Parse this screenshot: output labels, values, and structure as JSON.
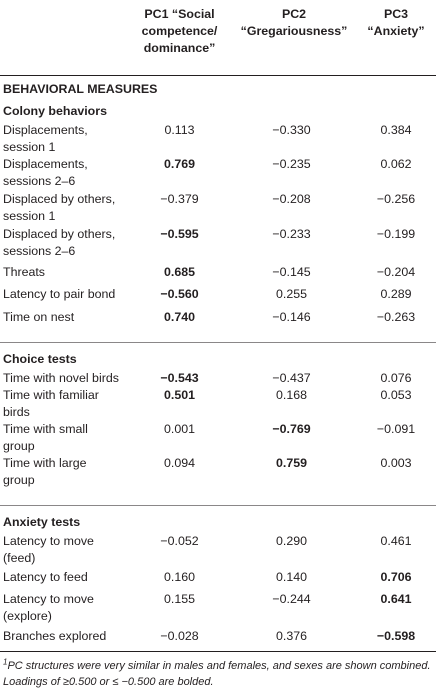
{
  "header": {
    "pc1": [
      "PC1 “Social",
      "competence/",
      "dominance”"
    ],
    "pc2": [
      "PC2",
      "“Gregariousness”"
    ],
    "pc3": [
      "PC3",
      "“Anxiety”"
    ]
  },
  "section_title": "BEHAVIORAL MEASURES",
  "groups": [
    {
      "title": "Colony behaviors",
      "rows": [
        {
          "label": [
            "Displacements,",
            "session 1"
          ],
          "values": [
            "0.113",
            "−0.330",
            "0.384"
          ],
          "bold": [
            false,
            false,
            false
          ]
        },
        {
          "label": [
            "Displacements,",
            "sessions 2–6"
          ],
          "values": [
            "0.769",
            "−0.235",
            "0.062"
          ],
          "bold": [
            true,
            false,
            false
          ]
        },
        {
          "label": [
            "Displaced by others,",
            "session 1"
          ],
          "values": [
            "−0.379",
            "−0.208",
            "−0.256"
          ],
          "bold": [
            false,
            false,
            false
          ]
        },
        {
          "label": [
            "Displaced by others,",
            "sessions 2–6"
          ],
          "values": [
            "−0.595",
            "−0.233",
            "−0.199"
          ],
          "bold": [
            true,
            false,
            false
          ]
        },
        {
          "label": [
            "Threats"
          ],
          "values": [
            "0.685",
            "−0.145",
            "−0.204"
          ],
          "bold": [
            true,
            false,
            false
          ]
        },
        {
          "label": [
            "Latency to pair bond"
          ],
          "values": [
            "−0.560",
            "0.255",
            "0.289"
          ],
          "bold": [
            true,
            false,
            false
          ]
        },
        {
          "label": [
            "Time on nest"
          ],
          "values": [
            "0.740",
            "−0.146",
            "−0.263"
          ],
          "bold": [
            true,
            false,
            false
          ]
        }
      ]
    },
    {
      "title": "Choice tests",
      "rows": [
        {
          "label": [
            "Time with novel birds"
          ],
          "values": [
            "−0.543",
            "−0.437",
            "0.076"
          ],
          "bold": [
            true,
            false,
            false
          ]
        },
        {
          "label": [
            "Time with familiar",
            "birds"
          ],
          "values": [
            "0.501",
            "0.168",
            "0.053"
          ],
          "bold": [
            true,
            false,
            false
          ]
        },
        {
          "label": [
            "Time with small",
            "group"
          ],
          "values": [
            "0.001",
            "−0.769",
            "−0.091"
          ],
          "bold": [
            false,
            true,
            false
          ]
        },
        {
          "label": [
            "Time with large",
            "group"
          ],
          "values": [
            "0.094",
            "0.759",
            "0.003"
          ],
          "bold": [
            false,
            true,
            false
          ]
        }
      ]
    },
    {
      "title": "Anxiety tests",
      "rows": [
        {
          "label": [
            "Latency to move",
            "(feed)"
          ],
          "values": [
            "−0.052",
            "0.290",
            "0.461"
          ],
          "bold": [
            false,
            false,
            false
          ]
        },
        {
          "label": [
            "Latency to feed"
          ],
          "values": [
            "0.160",
            "0.140",
            "0.706"
          ],
          "bold": [
            false,
            false,
            true
          ]
        },
        {
          "label": [
            "Latency to move",
            "(explore)"
          ],
          "values": [
            "0.155",
            "−0.244",
            "0.641"
          ],
          "bold": [
            false,
            false,
            true
          ]
        },
        {
          "label": [
            "Branches explored"
          ],
          "values": [
            "−0.028",
            "0.376",
            "−0.598"
          ],
          "bold": [
            false,
            false,
            true
          ]
        }
      ]
    }
  ],
  "footnote": {
    "marker": "1",
    "text": "PC structures were very similar in males and females, and sexes are shown combined. Loadings of ≥0.500 or ≤ −0.500 are bolded."
  }
}
